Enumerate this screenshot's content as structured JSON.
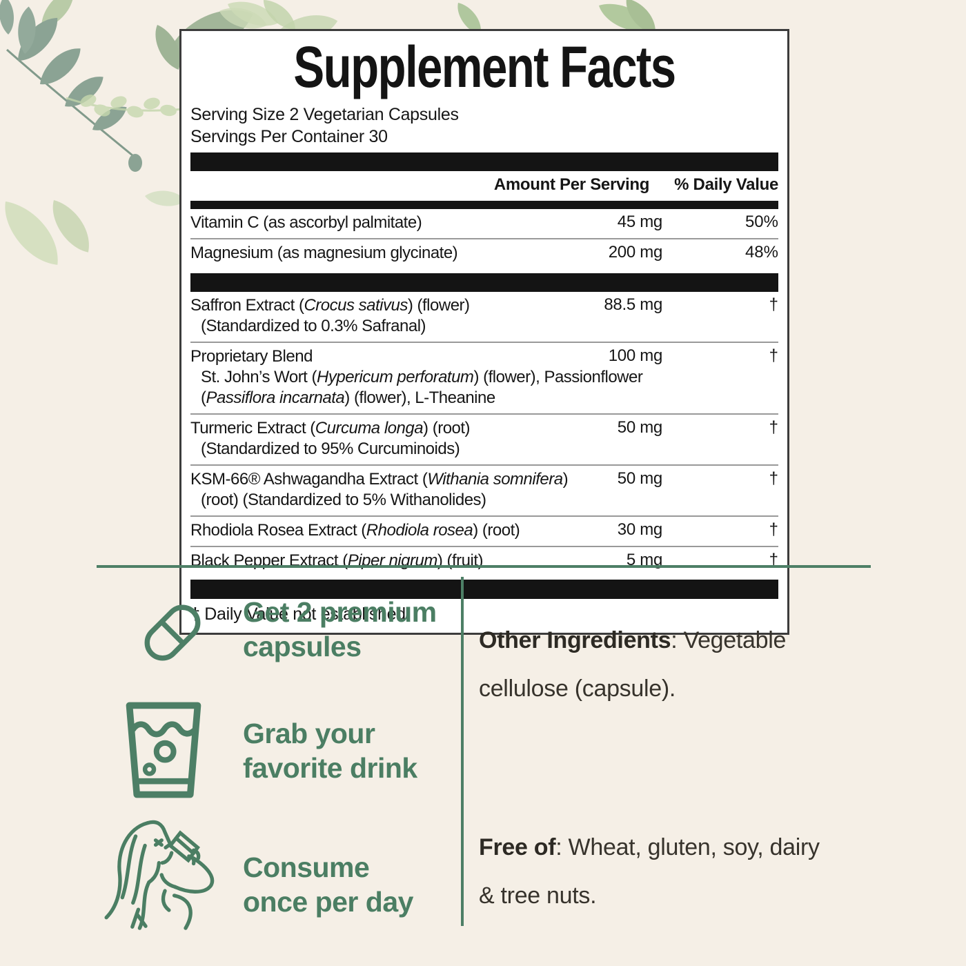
{
  "colors": {
    "background": "#f5efe6",
    "accent_green": "#4d7f66",
    "table_black": "#141414",
    "text_dark": "#37332c"
  },
  "supplement_facts": {
    "title": "Supplement Facts",
    "serving_size": "Serving Size 2 Vegetarian Capsules",
    "servings_per_container": "Servings Per Container 30",
    "columns": {
      "amount": "Amount Per Serving",
      "daily_value": "% Daily Value"
    },
    "groups": [
      {
        "rows": [
          {
            "name": "Vitamin C (as ascorbyl palmitate)",
            "amount": "45 mg",
            "daily_value": "50%"
          },
          {
            "name": "Magnesium (as magnesium glycinate)",
            "amount": "200 mg",
            "daily_value": "48%"
          }
        ]
      },
      {
        "rows": [
          {
            "name": "Saffron Extract (*Crocus sativus*) (flower)",
            "detail": "(Standardized to 0.3% Safranal)",
            "amount": "88.5 mg",
            "daily_value": "†"
          },
          {
            "name": "Proprietary Blend",
            "detail": "St. John’s Wort (*Hypericum perforatum*) (flower), Passionflower (*Passiflora incarnata*) (flower), L-Theanine",
            "amount": "100 mg",
            "daily_value": "†"
          },
          {
            "name": "Turmeric Extract (*Curcuma longa*) (root)",
            "detail": "(Standardized to 95% Curcuminoids)",
            "amount": "50 mg",
            "daily_value": "†"
          },
          {
            "name": "KSM-66® Ashwagandha Extract (*Withania somnifera*)",
            "detail": "(root) (Standardized to 5% Withanolides)",
            "amount": "50 mg",
            "daily_value": "†"
          },
          {
            "name": "Rhodiola Rosea Extract (*Rhodiola rosea*) (root)",
            "amount": "30 mg",
            "daily_value": "†"
          },
          {
            "name": "Black Pepper Extract (*Piper nigrum*) (fruit)",
            "amount": "5 mg",
            "daily_value": "†"
          }
        ]
      }
    ],
    "footnote": "† Daily Value not established."
  },
  "steps": [
    {
      "icon": "capsule-icon",
      "label": "Get 2 premium\ncapsules"
    },
    {
      "icon": "glass-icon",
      "label": "Grab your\nfavorite drink"
    },
    {
      "icon": "woman-drinking-icon",
      "label": "Consume\nonce per day"
    }
  ],
  "info": {
    "other_ingredients_label": "Other Ingredients",
    "other_ingredients_text": ": Vegetable\ncellulose (capsule).",
    "free_of_label": "Free of",
    "free_of_text": ": Wheat, gluten, soy, dairy\n& tree nuts."
  }
}
